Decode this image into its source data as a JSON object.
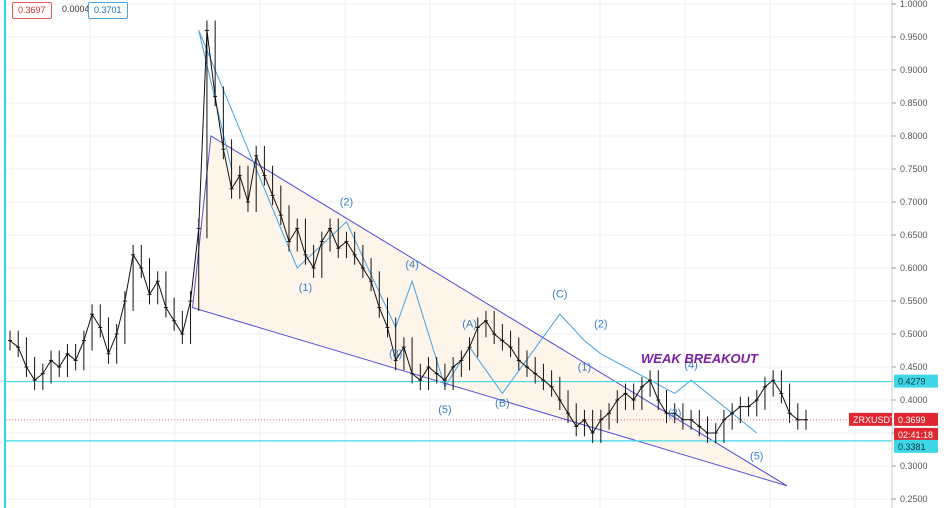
{
  "quote": {
    "bid": "0.3697",
    "spread": "0.0004",
    "ask": "0.3701"
  },
  "colors": {
    "accent_cyan": "#3fd7e8",
    "pattern_stroke": "#5a4fd8",
    "pattern_fill": "#fdf3e3",
    "wave_label": "#3a7fc4",
    "annotation": "#7b1fa2",
    "price_tag": "#e0262e",
    "candle": "#111111"
  },
  "chart_data": {
    "type": "line",
    "symbol": "ZRXUSDT",
    "ylim": [
      0.25,
      1.0
    ],
    "y_ticks": [
      "1.0000",
      "0.9500",
      "0.9000",
      "0.8500",
      "0.8000",
      "0.7500",
      "0.7000",
      "0.6500",
      "0.6000",
      "0.5500",
      "0.5000",
      "0.4500",
      "0.4000",
      "0.3500",
      "0.3000",
      "0.2500"
    ],
    "price_series": [
      0.49,
      0.48,
      0.45,
      0.43,
      0.44,
      0.46,
      0.45,
      0.47,
      0.46,
      0.49,
      0.53,
      0.51,
      0.47,
      0.5,
      0.55,
      0.62,
      0.6,
      0.56,
      0.58,
      0.54,
      0.52,
      0.5,
      0.55,
      0.66,
      0.96,
      0.86,
      0.78,
      0.72,
      0.74,
      0.7,
      0.77,
      0.74,
      0.71,
      0.68,
      0.64,
      0.66,
      0.62,
      0.6,
      0.64,
      0.66,
      0.63,
      0.64,
      0.62,
      0.6,
      0.58,
      0.54,
      0.51,
      0.46,
      0.48,
      0.44,
      0.43,
      0.45,
      0.44,
      0.43,
      0.45,
      0.46,
      0.48,
      0.51,
      0.52,
      0.5,
      0.49,
      0.48,
      0.46,
      0.45,
      0.44,
      0.43,
      0.42,
      0.4,
      0.38,
      0.36,
      0.37,
      0.35,
      0.37,
      0.38,
      0.4,
      0.41,
      0.4,
      0.42,
      0.43,
      0.4,
      0.38,
      0.38,
      0.37,
      0.37,
      0.36,
      0.35,
      0.35,
      0.37,
      0.38,
      0.39,
      0.39,
      0.4,
      0.42,
      0.43,
      0.41,
      0.38,
      0.37,
      0.37
    ],
    "support_level": "0.4279",
    "current_price": "0.3699",
    "countdown": "02:41:18",
    "lower_level": "0.3381",
    "wave_labels": [
      {
        "text": "(2)",
        "i": 41,
        "v": 0.695
      },
      {
        "text": "(1)",
        "i": 36,
        "v": 0.565
      },
      {
        "text": "(4)",
        "i": 49,
        "v": 0.6
      },
      {
        "text": "(3)",
        "i": 47,
        "v": 0.465
      },
      {
        "text": "(5)",
        "i": 53,
        "v": 0.38
      },
      {
        "text": "(A)",
        "i": 56,
        "v": 0.51
      },
      {
        "text": "(B)",
        "i": 60,
        "v": 0.39
      },
      {
        "text": "(C)",
        "i": 67,
        "v": 0.555
      },
      {
        "text": "(2)",
        "i": 72,
        "v": 0.51
      },
      {
        "text": "(1)",
        "i": 70,
        "v": 0.445
      },
      {
        "text": "(4)",
        "i": 83,
        "v": 0.448
      },
      {
        "text": "(3)",
        "i": 81,
        "v": 0.375
      },
      {
        "text": "(5)",
        "i": 91,
        "v": 0.31
      }
    ],
    "annotation": "WEAK BREAKOUT"
  }
}
